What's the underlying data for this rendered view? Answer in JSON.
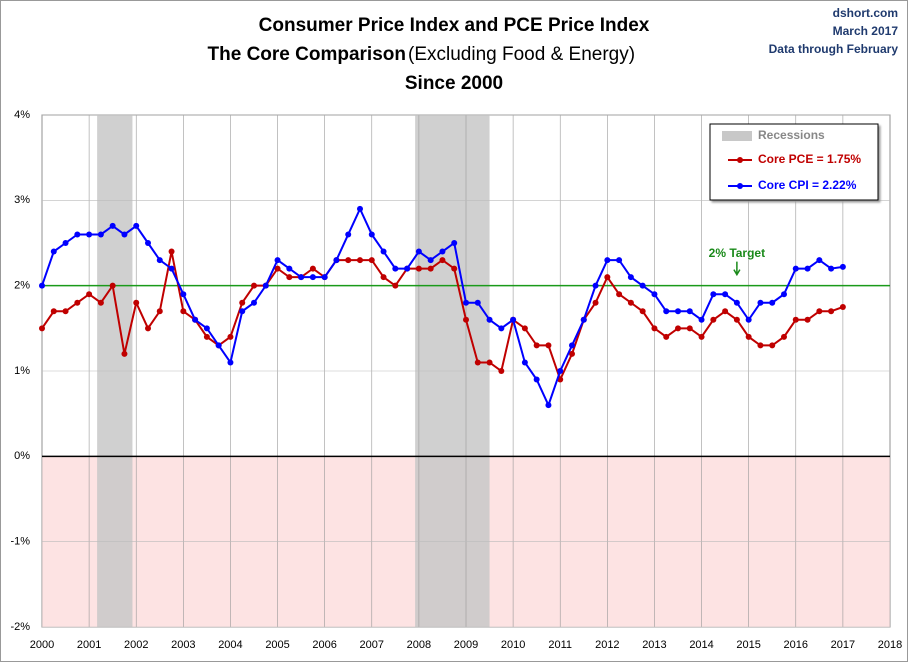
{
  "chart_data": {
    "type": "line",
    "title_lines": [
      "Consumer Price Index and PCE Price Index",
      "The Core Comparison",
      "Since 2000"
    ],
    "title_note": "(Excluding Food & Energy)",
    "source": "dshort.com",
    "date": "March 2017",
    "data_note": "Data through February",
    "x": [
      2000,
      2000.25,
      2000.5,
      2000.75,
      2001,
      2001.25,
      2001.5,
      2001.75,
      2002,
      2002.25,
      2002.5,
      2002.75,
      2003,
      2003.25,
      2003.5,
      2003.75,
      2004,
      2004.25,
      2004.5,
      2004.75,
      2005,
      2005.25,
      2005.5,
      2005.75,
      2006,
      2006.25,
      2006.5,
      2006.75,
      2007,
      2007.25,
      2007.5,
      2007.75,
      2008,
      2008.25,
      2008.5,
      2008.75,
      2009,
      2009.25,
      2009.5,
      2009.75,
      2010,
      2010.25,
      2010.5,
      2010.75,
      2011,
      2011.25,
      2011.5,
      2011.75,
      2012,
      2012.25,
      2012.5,
      2012.75,
      2013,
      2013.25,
      2013.5,
      2013.75,
      2014,
      2014.25,
      2014.5,
      2014.75,
      2015,
      2015.25,
      2015.5,
      2015.75,
      2016,
      2016.25,
      2016.5,
      2016.75,
      2017
    ],
    "series": [
      {
        "name": "Core PCE = 1.75%",
        "color": "#c00000",
        "values": [
          1.5,
          1.7,
          1.7,
          1.8,
          1.9,
          1.8,
          2.0,
          1.2,
          1.8,
          1.5,
          1.7,
          2.4,
          1.7,
          1.6,
          1.4,
          1.3,
          1.4,
          1.8,
          2.0,
          2.0,
          2.2,
          2.1,
          2.1,
          2.2,
          2.1,
          2.3,
          2.3,
          2.3,
          2.3,
          2.1,
          2.0,
          2.2,
          2.2,
          2.2,
          2.3,
          2.2,
          1.6,
          1.1,
          1.1,
          1.0,
          1.6,
          1.5,
          1.3,
          1.3,
          0.9,
          1.2,
          1.6,
          1.8,
          2.1,
          1.9,
          1.8,
          1.7,
          1.5,
          1.4,
          1.5,
          1.5,
          1.4,
          1.6,
          1.7,
          1.6,
          1.4,
          1.3,
          1.3,
          1.4,
          1.6,
          1.6,
          1.7,
          1.7,
          1.75
        ]
      },
      {
        "name": "Core CPI = 2.22%",
        "color": "#0000ff",
        "values": [
          2.0,
          2.4,
          2.5,
          2.6,
          2.6,
          2.6,
          2.7,
          2.6,
          2.7,
          2.5,
          2.3,
          2.2,
          1.9,
          1.6,
          1.5,
          1.3,
          1.1,
          1.7,
          1.8,
          2.0,
          2.3,
          2.2,
          2.1,
          2.1,
          2.1,
          2.3,
          2.6,
          2.9,
          2.6,
          2.4,
          2.2,
          2.2,
          2.4,
          2.3,
          2.4,
          2.5,
          1.8,
          1.8,
          1.6,
          1.5,
          1.6,
          1.1,
          0.9,
          0.6,
          1.0,
          1.3,
          1.6,
          2.0,
          2.3,
          2.3,
          2.1,
          2.0,
          1.9,
          1.7,
          1.7,
          1.7,
          1.6,
          1.9,
          1.9,
          1.8,
          1.6,
          1.8,
          1.8,
          1.9,
          2.2,
          2.2,
          2.3,
          2.2,
          2.22
        ]
      }
    ],
    "recession_label": "Recessions",
    "recessions": [
      [
        2001.17,
        2001.92
      ],
      [
        2007.92,
        2009.5
      ]
    ],
    "target": {
      "value": 2,
      "label": "2% Target",
      "x": 2014.75
    },
    "xlim": [
      2000,
      2018
    ],
    "xticks": [
      2000,
      2001,
      2002,
      2003,
      2004,
      2005,
      2006,
      2007,
      2008,
      2009,
      2010,
      2011,
      2012,
      2013,
      2014,
      2015,
      2016,
      2017,
      2018
    ],
    "ylim": [
      -2,
      4
    ],
    "yticks": [
      {
        "value": -2,
        "label": "-2%"
      },
      {
        "value": -1,
        "label": "-1%"
      },
      {
        "value": 0,
        "label": "0%"
      },
      {
        "value": 1,
        "label": "1%"
      },
      {
        "value": 2,
        "label": "2%"
      },
      {
        "value": 3,
        "label": "3%"
      },
      {
        "value": 4,
        "label": "4%"
      }
    ],
    "grid": true,
    "legend": "top-right"
  }
}
